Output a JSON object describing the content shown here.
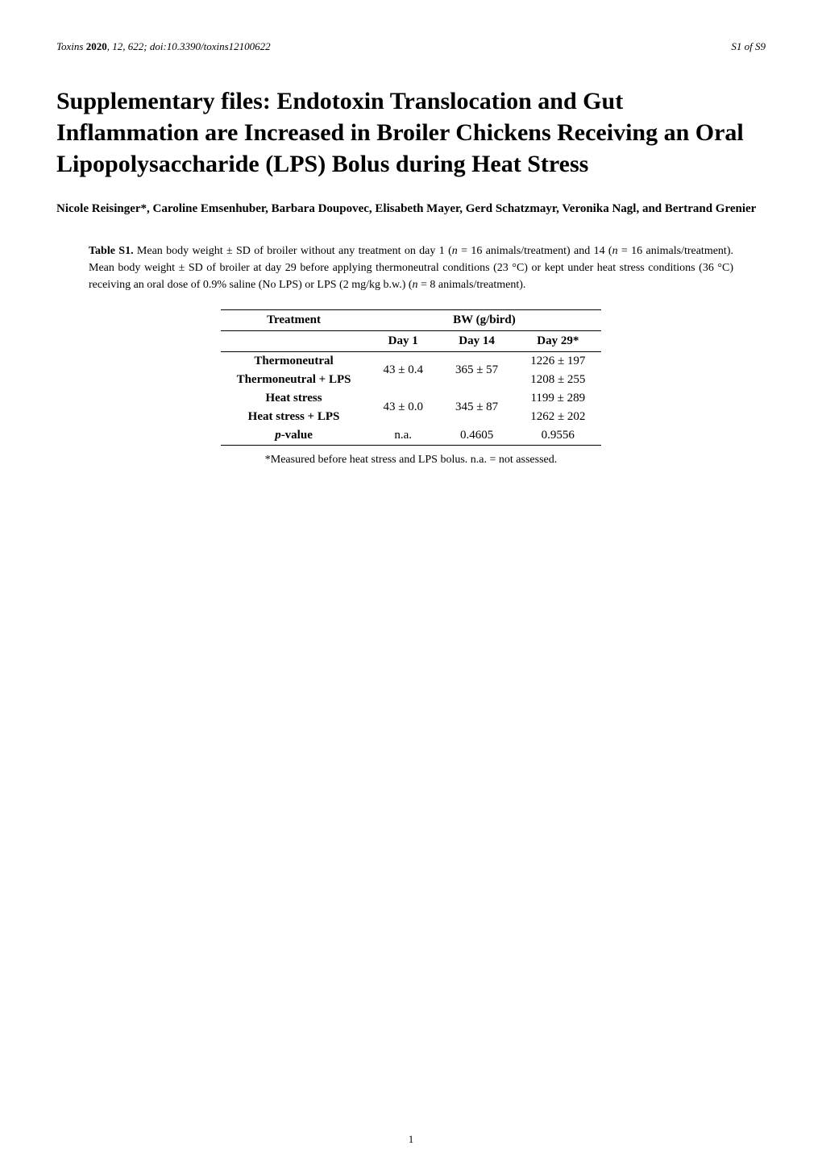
{
  "header": {
    "journal": "Toxins",
    "year": "2020",
    "volume": "12",
    "article": "622",
    "doi": "doi:10.3390/toxins12100622",
    "page_label": "S1 of S9"
  },
  "title": {
    "prefix": "Supplementary files",
    "main": "Endotoxin Translocation and Gut Inflammation are Increased in Broiler Chickens Receiving an Oral Lipopolysaccharide (LPS) Bolus during Heat Stress"
  },
  "authors": "Nicole Reisinger*, Caroline Emsenhuber, Barbara Doupovec, Elisabeth Mayer, Gerd Schatzmayr, Veronika Nagl, and Bertrand Grenier",
  "table_caption": {
    "label": "Table S1.",
    "text_1": " Mean body weight ± SD of broiler without any treatment on day 1 (",
    "n1": "n",
    "text_2": " = 16 animals/treatment) and 14 (",
    "n2": "n",
    "text_3": " = 16 animals/treatment). Mean body weight ± SD of broiler at day 29 before applying thermoneutral conditions (23 °C) or kept under heat stress conditions (36 °C) receiving an oral dose of 0.9% saline (No LPS) or LPS (2 mg/kg b.w.) (",
    "n3": "n",
    "text_4": " = 8 animals/treatment)."
  },
  "table": {
    "header_treatment": "Treatment",
    "header_bw": "BW (g/bird)",
    "subheader_day1": "Day 1",
    "subheader_day14": "Day 14",
    "subheader_day29": "Day 29*",
    "rows": [
      {
        "label": "Thermoneutral",
        "day29": "1226 ± 197"
      },
      {
        "label": "Thermoneutral + LPS",
        "day29": "1208 ± 255"
      },
      {
        "label": "Heat stress",
        "day29": "1199 ± 289"
      },
      {
        "label": "Heat stress + LPS",
        "day29": "1262 ± 202"
      }
    ],
    "shared_day1_a": "43 ± 0.4",
    "shared_day14_a": "365 ± 57",
    "shared_day1_b": "43 ± 0.0",
    "shared_day14_b": "345 ± 87",
    "pvalue_label": "p",
    "pvalue_suffix": "-value",
    "pvalue_day1": "n.a.",
    "pvalue_day14": "0.4605",
    "pvalue_day29": "0.9556"
  },
  "footnote": "*Measured before heat stress and LPS bolus. n.a. = not assessed.",
  "page_number": "1",
  "styling": {
    "background_color": "#ffffff",
    "text_color": "#000000",
    "title_fontsize": 30,
    "body_fontsize": 14,
    "table_fontsize": 15,
    "border_color": "#000000"
  }
}
